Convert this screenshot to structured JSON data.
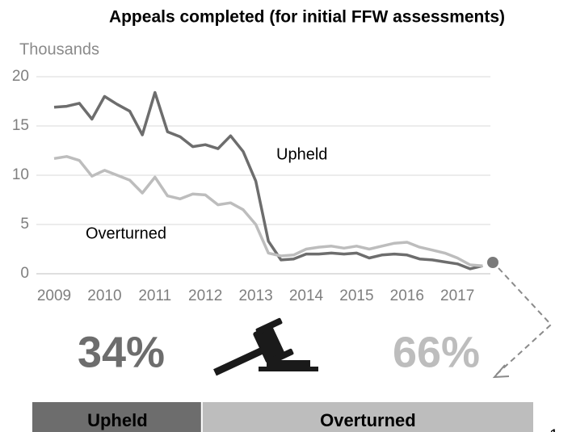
{
  "chart_data": [
    {
      "type": "line",
      "title": "Appeals completed (for initial FFW assessments)",
      "y_label": "Thousands",
      "categories": [
        "2009",
        null,
        null,
        null,
        "2010",
        null,
        null,
        null,
        "2011",
        null,
        null,
        null,
        "2012",
        null,
        null,
        null,
        "2013",
        null,
        null,
        null,
        "2014",
        null,
        null,
        null,
        "2015",
        null,
        null,
        null,
        "2016",
        null,
        null,
        null,
        "2017",
        null,
        null
      ],
      "series": [
        {
          "name": "Upheld",
          "color": "#6d6d6d",
          "values": [
            16.9,
            17.0,
            17.3,
            15.7,
            18.0,
            17.2,
            16.5,
            14.1,
            18.4,
            14.4,
            13.9,
            12.9,
            13.1,
            12.7,
            14.0,
            12.4,
            9.4,
            3.3,
            1.4,
            1.5,
            2.0,
            2.0,
            2.1,
            2.0,
            2.1,
            1.6,
            1.9,
            2.0,
            1.9,
            1.5,
            1.4,
            1.2,
            1.0,
            0.5,
            0.8
          ]
        },
        {
          "name": "Overturned",
          "color": "#bdbdbd",
          "values": [
            11.7,
            11.9,
            11.5,
            9.9,
            10.5,
            10.0,
            9.5,
            8.2,
            9.8,
            7.9,
            7.6,
            8.1,
            8.0,
            7.0,
            7.2,
            6.5,
            5.0,
            2.1,
            1.8,
            1.9,
            2.5,
            2.7,
            2.8,
            2.6,
            2.8,
            2.5,
            2.8,
            3.1,
            3.2,
            2.7,
            2.4,
            2.1,
            1.6,
            0.9,
            0.8
          ]
        }
      ],
      "ylim": [
        0,
        20
      ],
      "yticks": [
        0,
        5,
        10,
        15,
        20
      ],
      "grid": true
    },
    {
      "type": "stacked_bar",
      "categories": [
        "Upheld",
        "Overturned"
      ],
      "values": [
        34,
        66
      ],
      "value_labels": [
        "34%",
        "66%"
      ],
      "colors": [
        "#6d6d6d",
        "#bdbdbd"
      ],
      "xlim": [
        0,
        100
      ]
    }
  ],
  "page_number": "1"
}
